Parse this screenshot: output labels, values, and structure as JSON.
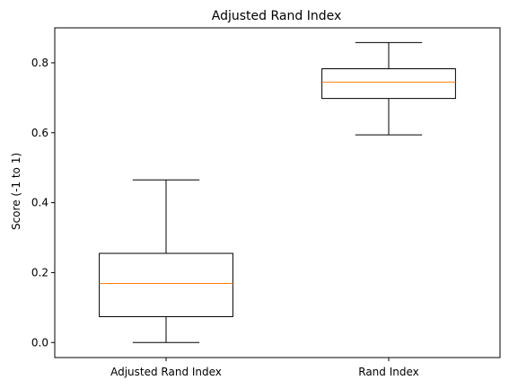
{
  "chart_data": {
    "type": "box",
    "title": "Adjusted Rand Index",
    "xlabel": "",
    "ylabel": "Score (-1 to 1)",
    "ylim": [
      -0.043,
      0.9
    ],
    "yticks": [
      "0.0",
      "0.2",
      "0.4",
      "0.6",
      "0.8"
    ],
    "ytick_values": [
      0.0,
      0.2,
      0.4,
      0.6,
      0.8
    ],
    "categories": [
      "Adjusted Rand Index",
      "Rand Index"
    ],
    "boxes": [
      {
        "whisker_low": 0.0,
        "q1": 0.074,
        "median": 0.169,
        "q3": 0.255,
        "whisker_high": 0.465
      },
      {
        "whisker_low": 0.594,
        "q1": 0.698,
        "median": 0.745,
        "q3": 0.783,
        "whisker_high": 0.858
      }
    ],
    "grid": false,
    "colors": {
      "box": "#000000",
      "median": "#ff7f0e"
    }
  }
}
